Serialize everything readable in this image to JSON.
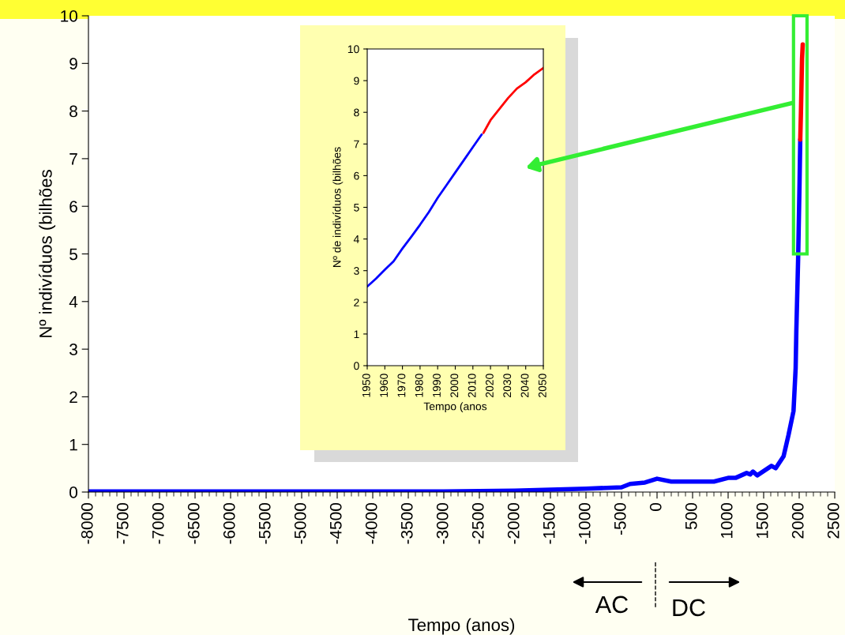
{
  "chart_data": [
    {
      "type": "line",
      "xlabel": "Tempo (anos)",
      "ylabel": "Nº indivíduos (bilhões",
      "xlim": [
        -8000,
        2500
      ],
      "xticks": [
        -8000,
        -7500,
        -7000,
        -6500,
        -6000,
        -5500,
        -5000,
        -4500,
        -4000,
        -3500,
        -3000,
        -2500,
        -2000,
        -1500,
        -1000,
        -500,
        0,
        500,
        1000,
        1500,
        2000,
        2500
      ],
      "ylim": [
        0,
        10
      ],
      "yticks": [
        0,
        1,
        2,
        3,
        4,
        5,
        6,
        7,
        8,
        9,
        10
      ],
      "grid": false,
      "legend": false,
      "marker": "none",
      "line_style": "solid",
      "annotations": [
        "AC",
        "DC"
      ],
      "series": [
        {
          "color": "#0000ff",
          "x": [
            -8000,
            -6000,
            -4000,
            -3000,
            -2500,
            -2000,
            -1500,
            -1000,
            -500,
            -380,
            -170,
            0,
            200,
            800,
            1010,
            1110,
            1260,
            1310,
            1350,
            1410,
            1610,
            1670,
            1780,
            1850,
            1920,
            1950,
            1960,
            1985,
            2005,
            2015
          ],
          "values": [
            0.01,
            0.01,
            0.01,
            0.01,
            0.02,
            0.03,
            0.05,
            0.07,
            0.1,
            0.17,
            0.2,
            0.28,
            0.22,
            0.22,
            0.3,
            0.3,
            0.4,
            0.37,
            0.43,
            0.35,
            0.55,
            0.5,
            0.75,
            1.2,
            1.7,
            2.6,
            3.4,
            4.9,
            6.5,
            7.4
          ]
        },
        {
          "color": "#ff0000",
          "x": [
            2015,
            2025,
            2040,
            2050
          ],
          "values": [
            7.4,
            8.0,
            9.1,
            9.4
          ]
        }
      ]
    },
    {
      "type": "line",
      "xlabel": "Tempo (anos",
      "ylabel": "Nº de indivíduos (bilhões",
      "xlim": [
        1950,
        2050
      ],
      "xticks": [
        1950,
        1960,
        1970,
        1980,
        1990,
        2000,
        2010,
        2020,
        2030,
        2040,
        2050
      ],
      "ylim": [
        0,
        10
      ],
      "yticks": [
        0,
        1,
        2,
        3,
        4,
        5,
        6,
        7,
        8,
        9,
        10
      ],
      "grid": false,
      "legend": false,
      "marker": "none",
      "line_style": "solid",
      "series": [
        {
          "color": "#0000ff",
          "x": [
            1950,
            1955,
            1960,
            1965,
            1970,
            1975,
            1980,
            1985,
            1990,
            1995,
            2000,
            2005,
            2010,
            2015
          ],
          "values": [
            2.5,
            2.75,
            3.03,
            3.3,
            3.7,
            4.07,
            4.45,
            4.85,
            5.3,
            5.7,
            6.1,
            6.5,
            6.9,
            7.3
          ]
        },
        {
          "color": "#ff0000",
          "x": [
            2016,
            2020,
            2025,
            2030,
            2035,
            2040,
            2045,
            2050
          ],
          "values": [
            7.35,
            7.75,
            8.1,
            8.45,
            8.75,
            8.95,
            9.2,
            9.4
          ]
        }
      ]
    }
  ]
}
